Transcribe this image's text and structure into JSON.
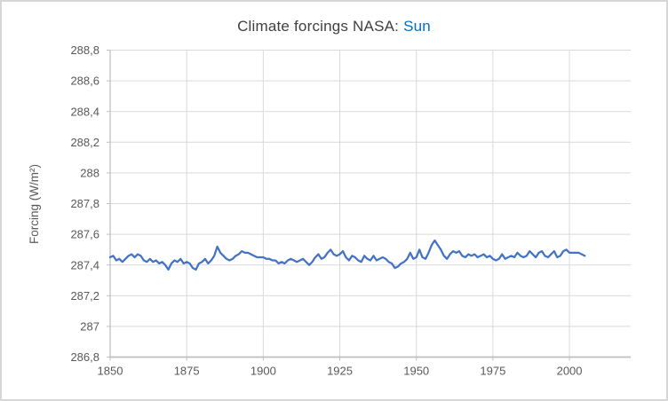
{
  "title": {
    "prefix": "Climate forcings NASA:",
    "series": "Sun"
  },
  "colors": {
    "line": "#4472C4",
    "title_text": "#404040",
    "series_accent": "#0070C0",
    "tick_text": "#595959",
    "gridline": "#D9D9D9",
    "axis": "#BFBFBF",
    "background": "#FFFFFF",
    "border": "#D6D6D6"
  },
  "chart_data": {
    "type": "line",
    "title": "Climate forcings NASA: Sun",
    "xlabel": "",
    "ylabel": "Forcing (W/m²)",
    "xlim": [
      1850,
      2020
    ],
    "ylim": [
      286.8,
      288.8
    ],
    "grid": true,
    "legend": "none",
    "x_ticks": [
      {
        "value": 1850,
        "label": "1850"
      },
      {
        "value": 1875,
        "label": "1875"
      },
      {
        "value": 1900,
        "label": "1900"
      },
      {
        "value": 1925,
        "label": "1925"
      },
      {
        "value": 1950,
        "label": "1950"
      },
      {
        "value": 1975,
        "label": "1975"
      },
      {
        "value": 2000,
        "label": "2000"
      }
    ],
    "y_ticks": [
      {
        "value": 286.8,
        "label": "286,8"
      },
      {
        "value": 287.0,
        "label": "287"
      },
      {
        "value": 287.2,
        "label": "287,2"
      },
      {
        "value": 287.4,
        "label": "287,4"
      },
      {
        "value": 287.6,
        "label": "287,6"
      },
      {
        "value": 287.8,
        "label": "287,8"
      },
      {
        "value": 288.0,
        "label": "288"
      },
      {
        "value": 288.2,
        "label": "288,2"
      },
      {
        "value": 288.4,
        "label": "288,4"
      },
      {
        "value": 288.6,
        "label": "288,6"
      },
      {
        "value": 288.8,
        "label": "288,8"
      }
    ],
    "series": [
      {
        "name": "Sun",
        "color": "#4472C4",
        "x_start": 1850,
        "x_step": 1,
        "values": [
          287.45,
          287.46,
          287.43,
          287.44,
          287.42,
          287.44,
          287.46,
          287.47,
          287.45,
          287.47,
          287.46,
          287.43,
          287.42,
          287.44,
          287.42,
          287.43,
          287.41,
          287.42,
          287.4,
          287.37,
          287.41,
          287.43,
          287.42,
          287.44,
          287.41,
          287.42,
          287.41,
          287.38,
          287.37,
          287.41,
          287.42,
          287.44,
          287.41,
          287.43,
          287.46,
          287.52,
          287.48,
          287.46,
          287.44,
          287.43,
          287.44,
          287.46,
          287.47,
          287.49,
          287.48,
          287.48,
          287.47,
          287.46,
          287.45,
          287.45,
          287.45,
          287.44,
          287.44,
          287.43,
          287.43,
          287.41,
          287.42,
          287.41,
          287.43,
          287.44,
          287.43,
          287.42,
          287.43,
          287.44,
          287.42,
          287.4,
          287.42,
          287.45,
          287.47,
          287.44,
          287.45,
          287.48,
          287.5,
          287.47,
          287.46,
          287.47,
          287.49,
          287.45,
          287.43,
          287.46,
          287.45,
          287.43,
          287.42,
          287.46,
          287.44,
          287.43,
          287.46,
          287.43,
          287.44,
          287.45,
          287.44,
          287.42,
          287.41,
          287.38,
          287.39,
          287.41,
          287.42,
          287.44,
          287.48,
          287.44,
          287.45,
          287.5,
          287.45,
          287.44,
          287.48,
          287.53,
          287.56,
          287.53,
          287.5,
          287.46,
          287.44,
          287.47,
          287.49,
          287.48,
          287.49,
          287.46,
          287.45,
          287.47,
          287.46,
          287.47,
          287.45,
          287.46,
          287.47,
          287.45,
          287.46,
          287.44,
          287.43,
          287.44,
          287.47,
          287.44,
          287.45,
          287.46,
          287.45,
          287.48,
          287.46,
          287.45,
          287.46,
          287.49,
          287.47,
          287.45,
          287.48,
          287.49,
          287.46,
          287.45,
          287.47,
          287.49,
          287.45,
          287.46,
          287.49,
          287.5,
          287.48,
          287.48,
          287.48,
          287.48,
          287.47,
          287.46
        ]
      }
    ]
  }
}
